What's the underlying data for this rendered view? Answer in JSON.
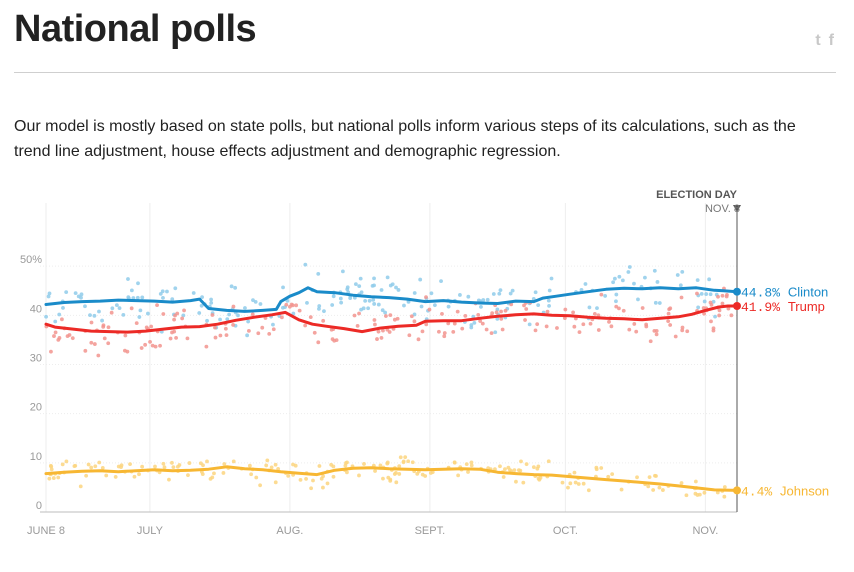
{
  "header": {
    "title": "National polls",
    "share_twitter_label": "t",
    "share_facebook_label": "f"
  },
  "intro_text": "Our model is mostly based on state polls, but national polls inform various steps of its calculations, such as the trend line adjustment, house effects adjustment and demographic regression.",
  "colors": {
    "clinton": "#1a8bc9",
    "trump": "#ec2a26",
    "johnson": "#f7b733",
    "clinton_dot": "#8fcbea",
    "trump_dot": "#f2948e",
    "johnson_dot": "#fbd57f"
  },
  "chart_data": {
    "type": "line",
    "title": "National polls",
    "xlabel": "",
    "ylabel": "",
    "x_domain_days": [
      0,
      153
    ],
    "ylim": [
      0,
      60
    ],
    "y_ticks": [
      0,
      10,
      20,
      30,
      40,
      50
    ],
    "y_tick_labels": [
      "0",
      "10",
      "20",
      "30",
      "40",
      "50%"
    ],
    "x_ticks": [
      {
        "day": 0,
        "label": "JUNE 8"
      },
      {
        "day": 23,
        "label": "JULY"
      },
      {
        "day": 54,
        "label": "AUG."
      },
      {
        "day": 85,
        "label": "SEPT."
      },
      {
        "day": 115,
        "label": "OCT."
      },
      {
        "day": 146,
        "label": "NOV."
      }
    ],
    "election_day": {
      "day": 153,
      "label": "ELECTION DAY",
      "date": "NOV. 8"
    },
    "series": [
      {
        "name": "Clinton",
        "end_label": "44.8%",
        "points": [
          [
            0,
            42.2
          ],
          [
            4,
            42.6
          ],
          [
            8,
            42.8
          ],
          [
            12,
            42.9
          ],
          [
            16,
            43.1
          ],
          [
            20,
            43.0
          ],
          [
            24,
            42.9
          ],
          [
            28,
            42.7
          ],
          [
            32,
            43.0
          ],
          [
            34,
            43.3
          ],
          [
            36,
            41.4
          ],
          [
            40,
            41.0
          ],
          [
            44,
            40.8
          ],
          [
            48,
            41.0
          ],
          [
            51,
            41.2
          ],
          [
            52,
            42.8
          ],
          [
            54,
            43.9
          ],
          [
            56,
            44.6
          ],
          [
            58,
            45.6
          ],
          [
            60,
            44.8
          ],
          [
            64,
            44.6
          ],
          [
            68,
            44.1
          ],
          [
            72,
            43.8
          ],
          [
            76,
            43.6
          ],
          [
            80,
            43.3
          ],
          [
            84,
            42.8
          ],
          [
            88,
            43.0
          ],
          [
            92,
            42.7
          ],
          [
            96,
            42.5
          ],
          [
            100,
            42.4
          ],
          [
            104,
            42.9
          ],
          [
            108,
            42.8
          ],
          [
            110,
            43.5
          ],
          [
            113,
            43.9
          ],
          [
            116,
            44.3
          ],
          [
            120,
            44.8
          ],
          [
            124,
            45.3
          ],
          [
            128,
            45.5
          ],
          [
            132,
            45.4
          ],
          [
            136,
            45.6
          ],
          [
            140,
            45.4
          ],
          [
            144,
            45.6
          ],
          [
            148,
            45.1
          ],
          [
            150,
            45.0
          ],
          [
            153,
            44.8
          ]
        ]
      },
      {
        "name": "Trump",
        "end_label": "41.9%",
        "points": [
          [
            0,
            38.2
          ],
          [
            2,
            37.6
          ],
          [
            6,
            37.2
          ],
          [
            10,
            36.8
          ],
          [
            14,
            36.7
          ],
          [
            18,
            36.6
          ],
          [
            22,
            36.8
          ],
          [
            26,
            37.2
          ],
          [
            30,
            37.6
          ],
          [
            34,
            37.7
          ],
          [
            38,
            38.2
          ],
          [
            42,
            39.0
          ],
          [
            46,
            39.6
          ],
          [
            50,
            40.1
          ],
          [
            53,
            40.6
          ],
          [
            56,
            39.1
          ],
          [
            59,
            38.2
          ],
          [
            62,
            37.8
          ],
          [
            66,
            37.3
          ],
          [
            70,
            36.7
          ],
          [
            74,
            37.4
          ],
          [
            78,
            37.8
          ],
          [
            82,
            38.0
          ],
          [
            84,
            38.8
          ],
          [
            88,
            38.9
          ],
          [
            92,
            38.9
          ],
          [
            96,
            39.4
          ],
          [
            100,
            39.8
          ],
          [
            104,
            40.1
          ],
          [
            108,
            40.3
          ],
          [
            112,
            40.0
          ],
          [
            116,
            39.9
          ],
          [
            120,
            39.6
          ],
          [
            124,
            39.4
          ],
          [
            128,
            39.3
          ],
          [
            132,
            39.1
          ],
          [
            136,
            39.4
          ],
          [
            140,
            39.7
          ],
          [
            143,
            40.2
          ],
          [
            146,
            41.0
          ],
          [
            149,
            41.7
          ],
          [
            151,
            41.9
          ],
          [
            153,
            41.9
          ]
        ]
      },
      {
        "name": "Johnson",
        "end_label": "4.4%",
        "points": [
          [
            0,
            7.8
          ],
          [
            4,
            8.1
          ],
          [
            8,
            8.3
          ],
          [
            12,
            8.4
          ],
          [
            16,
            8.2
          ],
          [
            20,
            8.4
          ],
          [
            24,
            8.6
          ],
          [
            28,
            8.4
          ],
          [
            32,
            8.5
          ],
          [
            36,
            8.7
          ],
          [
            40,
            9.2
          ],
          [
            44,
            8.8
          ],
          [
            48,
            8.6
          ],
          [
            52,
            8.2
          ],
          [
            56,
            7.9
          ],
          [
            60,
            7.6
          ],
          [
            64,
            8.5
          ],
          [
            68,
            8.9
          ],
          [
            72,
            9.0
          ],
          [
            76,
            8.8
          ],
          [
            80,
            8.7
          ],
          [
            84,
            8.6
          ],
          [
            88,
            8.7
          ],
          [
            92,
            8.8
          ],
          [
            96,
            8.7
          ],
          [
            100,
            8.1
          ],
          [
            104,
            7.8
          ],
          [
            108,
            7.6
          ],
          [
            112,
            7.5
          ],
          [
            116,
            7.2
          ],
          [
            120,
            6.9
          ],
          [
            124,
            6.6
          ],
          [
            128,
            6.3
          ],
          [
            132,
            6.0
          ],
          [
            136,
            5.7
          ],
          [
            140,
            5.3
          ],
          [
            144,
            4.9
          ],
          [
            148,
            4.5
          ],
          [
            153,
            4.4
          ]
        ]
      }
    ],
    "end_labels": [
      {
        "series": "Clinton",
        "value": "44.8%",
        "name": "Clinton"
      },
      {
        "series": "Trump",
        "value": "41.9%",
        "name": "Trump"
      },
      {
        "series": "Johnson",
        "value": "4.4%",
        "name": "Johnson"
      }
    ]
  }
}
